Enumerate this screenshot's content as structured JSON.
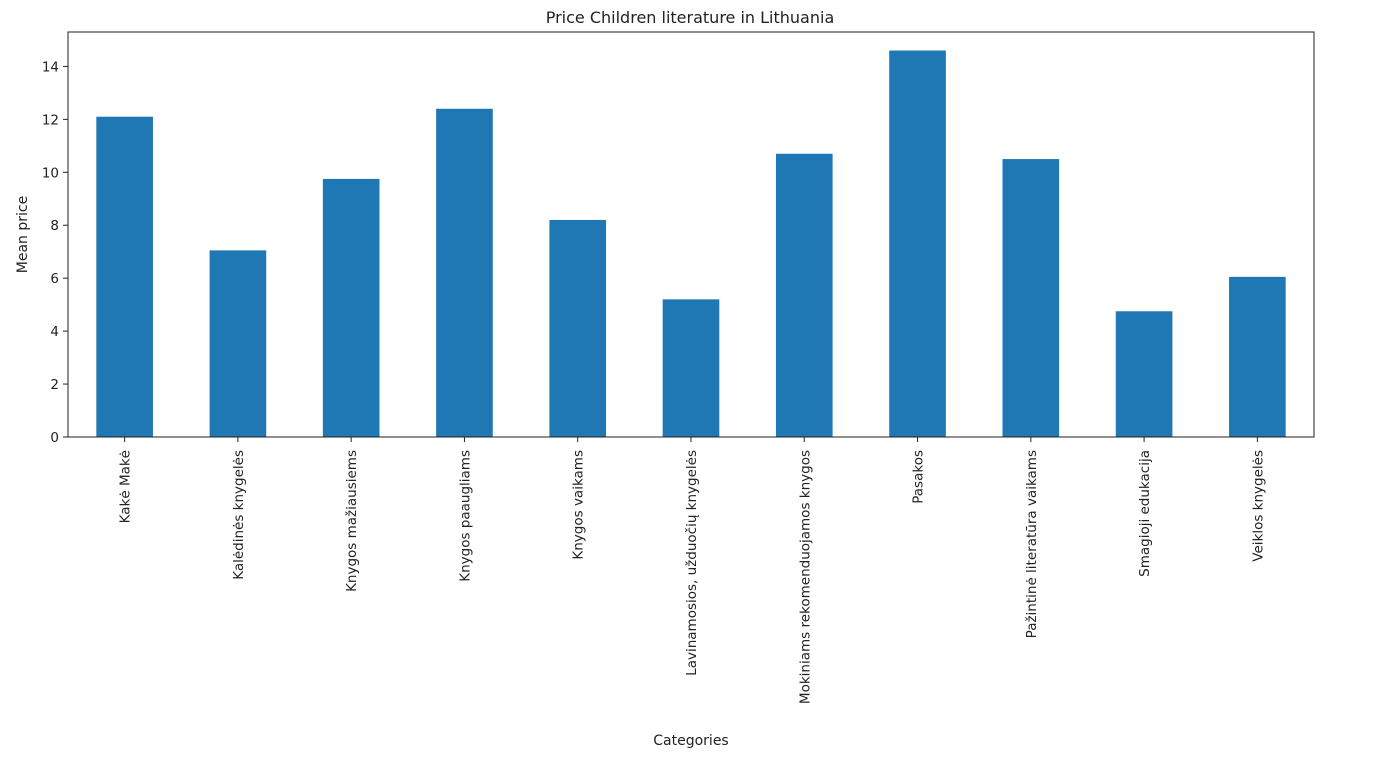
{
  "chart_data": {
    "type": "bar",
    "title": "Price Children literature in Lithuania",
    "xlabel": "Categories",
    "ylabel": "Mean price",
    "ylim": [
      0,
      15.3
    ],
    "yticks": [
      0,
      2,
      4,
      6,
      8,
      10,
      12,
      14
    ],
    "grid": false,
    "legend": "none",
    "bar_color": "#1f77b4",
    "categories": [
      "Kakė Makė",
      "Kalėdinės knygelės",
      "Knygos mažiausiems",
      "Knygos paaugliams",
      "Knygos vaikams",
      "Lavinamosios, užduočių knygelės",
      "Mokiniams rekomenduojamos knygos",
      "Pasakos",
      "Pažintinė literatūra vaikams",
      "Smagioji edukacija",
      "Veiklos knygelės"
    ],
    "values": [
      12.1,
      7.05,
      9.75,
      12.4,
      8.2,
      5.2,
      10.7,
      14.6,
      10.5,
      4.75,
      6.05
    ]
  }
}
